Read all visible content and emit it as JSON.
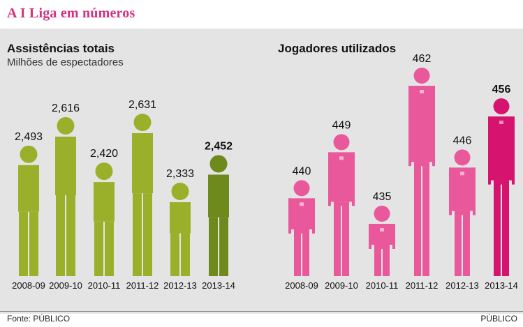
{
  "page_title": "A I Liga em números",
  "footer": {
    "source": "Fonte: PÚBLICO",
    "brand": "PÚBLICO"
  },
  "colors": {
    "title": "#d6307e",
    "green": "#9bb02a",
    "green_highlight": "#6f8a1c",
    "pink": "#e9589b",
    "pink_highlight": "#d6136f",
    "panel": "#e4e4e4"
  },
  "chart_data": [
    {
      "type": "bar",
      "style": "pictogram-person",
      "title": "Assistências totais",
      "subtitle": "Milhões de espectadores",
      "xlabel": "",
      "ylabel": "",
      "categories": [
        "2008-09",
        "2009-10",
        "2010-11",
        "2011-12",
        "2012-13",
        "2013-14"
      ],
      "values": [
        2.493,
        2.616,
        2.42,
        2.631,
        2.333,
        2.452
      ],
      "value_labels": [
        "2,493",
        "2,616",
        "2,420",
        "2,631",
        "2,333",
        "2,452"
      ],
      "highlight_index": 5
    },
    {
      "type": "bar",
      "style": "pictogram-person",
      "title": "Jogadores utilizados",
      "subtitle": "",
      "xlabel": "",
      "ylabel": "",
      "categories": [
        "2008-09",
        "2009-10",
        "2010-11",
        "2011-12",
        "2012-13",
        "2013-14"
      ],
      "values": [
        440,
        449,
        435,
        462,
        446,
        456
      ],
      "value_labels": [
        "440",
        "449",
        "435",
        "462",
        "446",
        "456"
      ],
      "highlight_index": 5
    }
  ]
}
